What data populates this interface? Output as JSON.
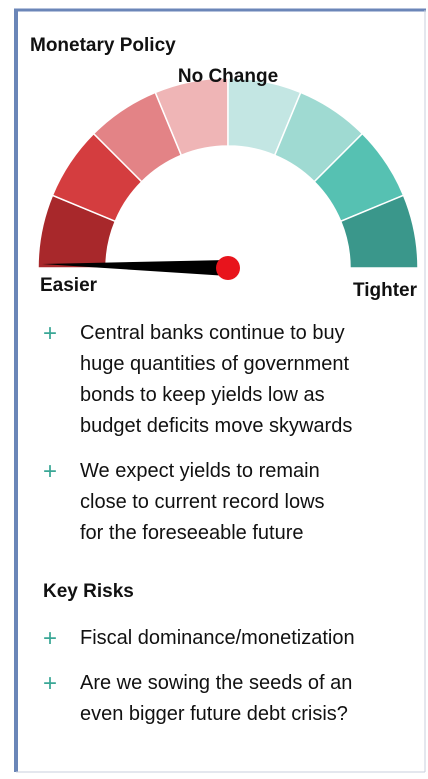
{
  "title": "Monetary Policy",
  "gauge": {
    "top_label": "No Change",
    "left_label": "Easier",
    "right_label": "Tighter"
  },
  "bullets": [
    {
      "marker": "+",
      "lines": [
        "Central banks continue to buy",
        "huge quantities of government",
        "bonds to keep yields low as",
        "budget deficits move skywards"
      ]
    },
    {
      "marker": "+",
      "lines": [
        "We expect yields to remain",
        "close to current record lows",
        "for the foreseeable future"
      ]
    }
  ],
  "risks": {
    "heading": "Key Risks",
    "bullets": [
      {
        "marker": "+",
        "lines": [
          "Fiscal dominance/monetization"
        ]
      },
      {
        "marker": "+",
        "lines": [
          "Are we sowing the seeds of an",
          "even bigger future debt crisis?"
        ]
      }
    ]
  }
}
